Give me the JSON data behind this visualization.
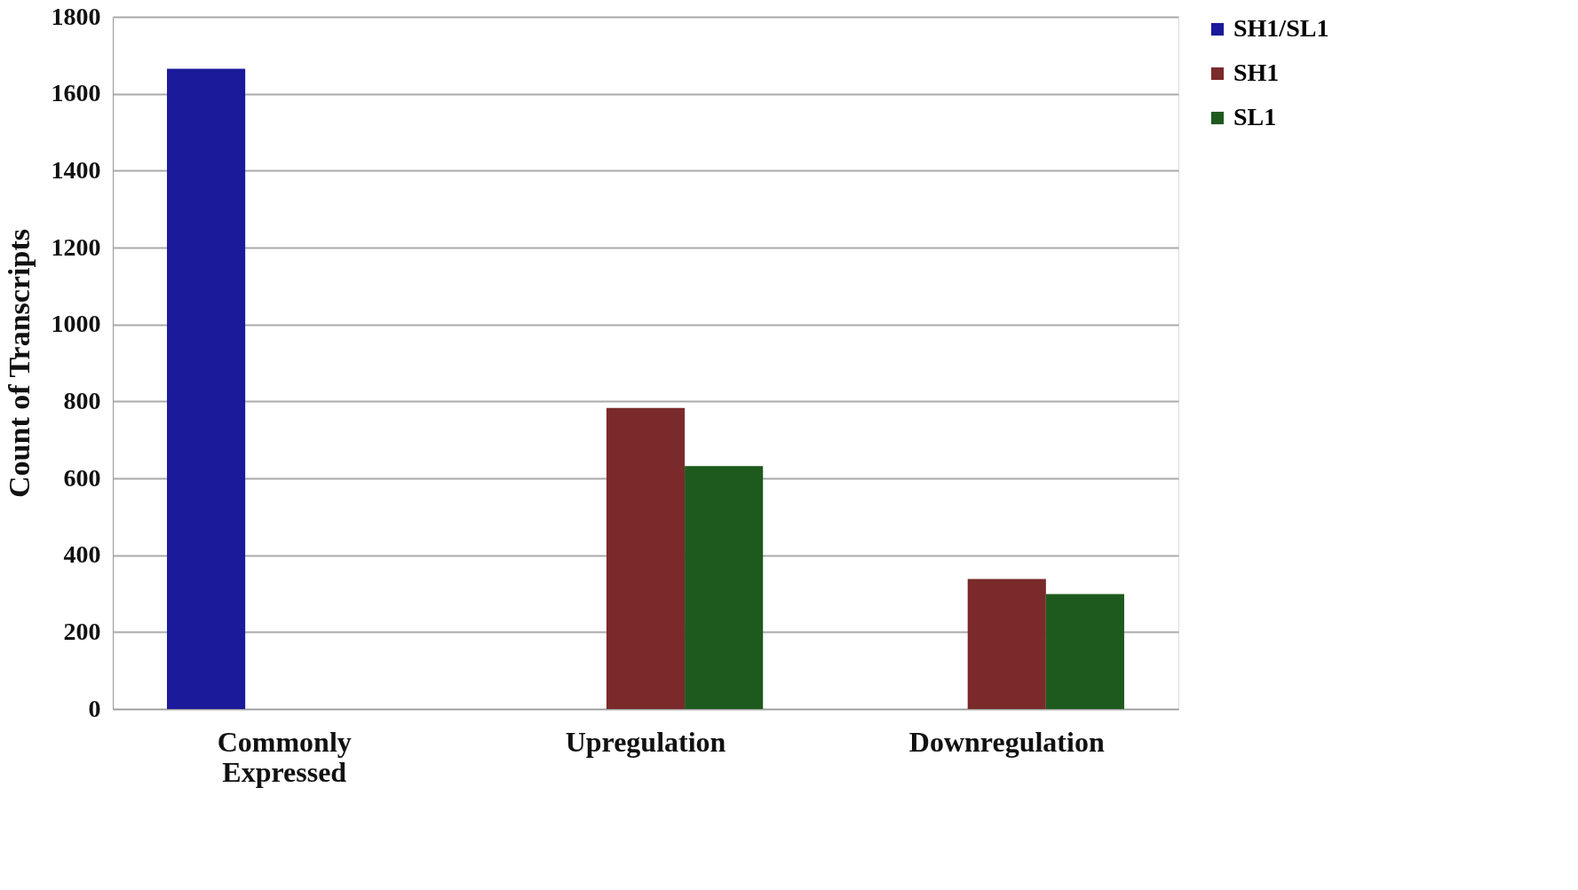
{
  "chart_data": {
    "type": "bar",
    "ylabel": "Count of Transcripts",
    "categories": [
      "Commonly Expressed",
      "Upregulation",
      "Downregulation"
    ],
    "series": [
      {
        "name": "SH1/SL1",
        "color": "#1a1a9a",
        "values": [
          1665,
          null,
          null
        ]
      },
      {
        "name": "SH1",
        "color": "#7a2a2a",
        "values": [
          null,
          783,
          338
        ]
      },
      {
        "name": "SL1",
        "color": "#1e5a1e",
        "values": [
          null,
          632,
          299
        ]
      }
    ],
    "ylim": [
      0,
      1800
    ],
    "yticks": [
      0,
      200,
      400,
      600,
      800,
      1000,
      1200,
      1400,
      1600,
      1800
    ],
    "grid": "y",
    "legend": "right"
  }
}
